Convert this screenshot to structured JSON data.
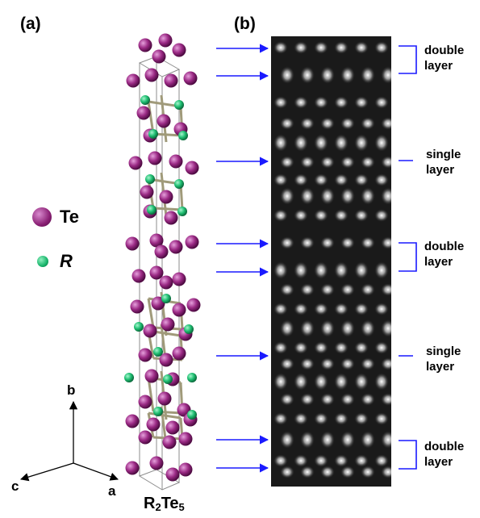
{
  "panels": {
    "a": "(a)",
    "b": "(b)"
  },
  "legend": {
    "te": {
      "label": "Te",
      "color": "#9b2a85"
    },
    "r": {
      "label": "R",
      "color": "#1fbf72"
    }
  },
  "axes": {
    "a": "a",
    "b": "b",
    "c": "c"
  },
  "formula": {
    "base1": "R",
    "sub1": "2",
    "base2": "Te",
    "sub2": "5"
  },
  "layers": [
    {
      "line1": "double",
      "line2": "layer",
      "type": "double"
    },
    {
      "line1": "single",
      "line2": "layer",
      "type": "single"
    },
    {
      "line1": "double",
      "line2": "layer",
      "type": "double"
    },
    {
      "line1": "single",
      "line2": "layer",
      "type": "single"
    },
    {
      "line1": "double",
      "line2": "layer",
      "type": "double"
    }
  ],
  "colors": {
    "arrow": "#1a1aff",
    "bond": "#a09a7a",
    "cell": "#8c8c8c"
  }
}
